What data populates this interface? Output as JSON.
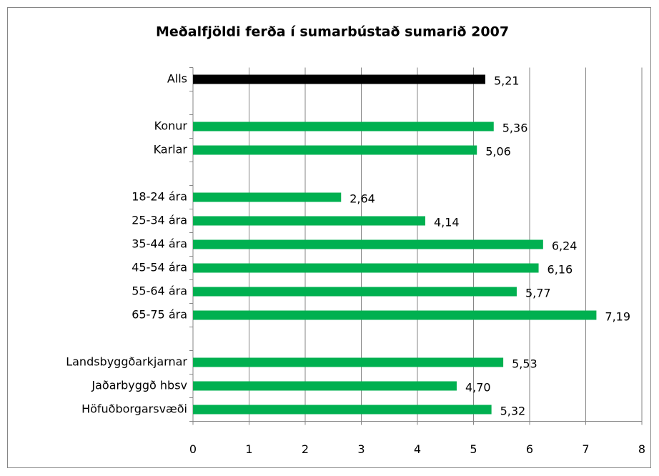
{
  "chart_data": {
    "type": "bar",
    "orientation": "horizontal",
    "title": "Meðalfjöldi ferða í sumarbústað sumarið 2007",
    "categories": [
      "Alls",
      null,
      "Konur",
      "Karlar",
      null,
      "18-24 ára",
      "25-34 ára",
      "35-44 ára",
      "45-54 ára",
      "55-64 ára",
      "65-75 ára",
      null,
      "Landsbyggðarkjarnar",
      "Jaðarbyggð hbsv",
      "Höfuðborgarsvæði"
    ],
    "values": [
      5.21,
      null,
      5.36,
      5.06,
      null,
      2.64,
      4.14,
      6.24,
      6.16,
      5.77,
      7.19,
      null,
      5.53,
      4.7,
      5.32
    ],
    "value_labels": [
      "5,21",
      null,
      "5,36",
      "5,06",
      null,
      "2,64",
      "4,14",
      "6,24",
      "6,16",
      "5,77",
      "7,19",
      null,
      "5,53",
      "4,70",
      "5,32"
    ],
    "colors": [
      "#000000",
      null,
      "#00b050",
      "#00b050",
      null,
      "#00b050",
      "#00b050",
      "#00b050",
      "#00b050",
      "#00b050",
      "#00b050",
      null,
      "#00b050",
      "#00b050",
      "#00b050"
    ],
    "xlim": [
      0,
      8
    ],
    "xticks": [
      0,
      1,
      2,
      3,
      4,
      5,
      6,
      7,
      8
    ],
    "grid": true
  }
}
